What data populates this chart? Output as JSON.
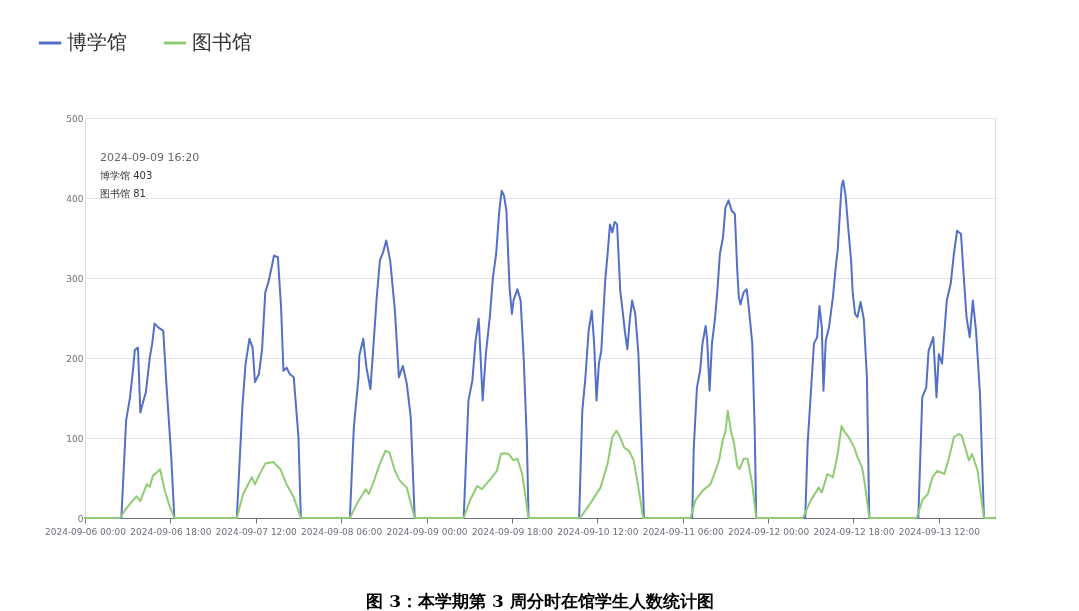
{
  "chart_data": {
    "type": "line",
    "title": "图 3：本学期第 3 周分时在馆学生人数统计图",
    "xlim": [
      "2024-09-06T00:00",
      "2024-09-13T23:50"
    ],
    "ylim": [
      0,
      500
    ],
    "yticks": [
      0,
      100,
      200,
      300,
      400,
      500
    ],
    "xticks": [
      {
        "value": "2024-09-06T00:00",
        "label": "2024-09-06 00:00"
      },
      {
        "value": "2024-09-06T18:00",
        "label": "2024-09-06 18:00"
      },
      {
        "value": "2024-09-07T12:00",
        "label": "2024-09-07 12:00"
      },
      {
        "value": "2024-09-08T06:00",
        "label": "2024-09-08 06:00"
      },
      {
        "value": "2024-09-09T00:00",
        "label": "2024-09-09 00:00"
      },
      {
        "value": "2024-09-09T18:00",
        "label": "2024-09-09 18:00"
      },
      {
        "value": "2024-09-10T12:00",
        "label": "2024-09-10 12:00"
      },
      {
        "value": "2024-09-11T06:00",
        "label": "2024-09-11 06:00"
      },
      {
        "value": "2024-09-12T00:00",
        "label": "2024-09-12 00:00"
      },
      {
        "value": "2024-09-12T18:00",
        "label": "2024-09-12 18:00"
      },
      {
        "value": "2024-09-13T12:00",
        "label": "2024-09-13 12:00"
      }
    ],
    "grid": "y",
    "legend": "top left",
    "line_style": "solid",
    "annotations": [
      "2024-09-09 16:20",
      "博学馆 403",
      "图书馆 81"
    ],
    "series": [
      {
        "name": "博学馆",
        "color": "#5470c6",
        "x": [
          "2024-09-06T00:00",
          "2024-09-06T07:40",
          "2024-09-06T08:40",
          "2024-09-06T09:30",
          "2024-09-06T10:10",
          "2024-09-06T10:30",
          "2024-09-06T11:10",
          "2024-09-06T11:40",
          "2024-09-06T12:20",
          "2024-09-06T12:50",
          "2024-09-06T13:40",
          "2024-09-06T14:10",
          "2024-09-06T14:40",
          "2024-09-06T15:30",
          "2024-09-06T16:30",
          "2024-09-06T17:10",
          "2024-09-06T18:10",
          "2024-09-06T18:50",
          "2024-09-07T08:00",
          "2024-09-07T09:10",
          "2024-09-07T09:50",
          "2024-09-07T10:40",
          "2024-09-07T11:20",
          "2024-09-07T11:50",
          "2024-09-07T12:40",
          "2024-09-07T13:20",
          "2024-09-07T14:00",
          "2024-09-07T14:40",
          "2024-09-07T15:20",
          "2024-09-07T15:50",
          "2024-09-07T16:40",
          "2024-09-07T17:20",
          "2024-09-07T17:50",
          "2024-09-07T18:30",
          "2024-09-07T19:10",
          "2024-09-07T20:00",
          "2024-09-07T21:00",
          "2024-09-07T21:30",
          "2024-09-08T07:50",
          "2024-09-08T08:40",
          "2024-09-08T09:40",
          "2024-09-08T09:50",
          "2024-09-08T10:40",
          "2024-09-08T11:20",
          "2024-09-08T12:10",
          "2024-09-08T12:50",
          "2024-09-08T13:30",
          "2024-09-08T14:10",
          "2024-09-08T14:50",
          "2024-09-08T15:30",
          "2024-09-08T16:20",
          "2024-09-08T17:20",
          "2024-09-08T18:10",
          "2024-09-08T19:00",
          "2024-09-08T19:50",
          "2024-09-08T20:40",
          "2024-09-08T21:30",
          "2024-09-09T07:50",
          "2024-09-09T08:50",
          "2024-09-09T09:40",
          "2024-09-09T10:20",
          "2024-09-09T11:00",
          "2024-09-09T11:50",
          "2024-09-09T12:30",
          "2024-09-09T13:20",
          "2024-09-09T14:00",
          "2024-09-09T14:40",
          "2024-09-09T15:20",
          "2024-09-09T15:50",
          "2024-09-09T16:20",
          "2024-09-09T16:50",
          "2024-09-09T17:30",
          "2024-09-09T18:00",
          "2024-09-09T18:20",
          "2024-09-09T19:10",
          "2024-09-09T19:50",
          "2024-09-09T20:30",
          "2024-09-09T21:10",
          "2024-09-09T21:30",
          "2024-09-10T08:10",
          "2024-09-10T08:50",
          "2024-09-10T09:30",
          "2024-09-10T10:10",
          "2024-09-10T10:50",
          "2024-09-10T11:20",
          "2024-09-10T11:50",
          "2024-09-10T12:20",
          "2024-09-10T12:50",
          "2024-09-10T13:40",
          "2024-09-10T14:10",
          "2024-09-10T14:40",
          "2024-09-10T15:10",
          "2024-09-10T15:40",
          "2024-09-10T16:10",
          "2024-09-10T16:50",
          "2024-09-10T17:20",
          "2024-09-10T17:50",
          "2024-09-10T18:20",
          "2024-09-10T18:50",
          "2024-09-10T19:20",
          "2024-09-10T20:00",
          "2024-09-10T20:40",
          "2024-09-10T21:20",
          "2024-09-10T21:50",
          "2024-09-11T08:00",
          "2024-09-11T08:20",
          "2024-09-11T09:00",
          "2024-09-11T09:40",
          "2024-09-11T10:10",
          "2024-09-11T10:50",
          "2024-09-11T11:10",
          "2024-09-11T11:40",
          "2024-09-11T12:10",
          "2024-09-11T12:50",
          "2024-09-11T13:20",
          "2024-09-11T13:50",
          "2024-09-11T14:30",
          "2024-09-11T15:00",
          "2024-09-11T15:40",
          "2024-09-11T16:20",
          "2024-09-11T17:00",
          "2024-09-11T17:30",
          "2024-09-11T17:50",
          "2024-09-11T18:10",
          "2024-09-11T18:50",
          "2024-09-11T19:30",
          "2024-09-11T20:00",
          "2024-09-11T20:40",
          "2024-09-11T21:10",
          "2024-09-11T21:30",
          "2024-09-12T07:50",
          "2024-09-12T08:20",
          "2024-09-12T09:00",
          "2024-09-12T09:40",
          "2024-09-12T10:20",
          "2024-09-12T10:50",
          "2024-09-12T11:20",
          "2024-09-12T11:40",
          "2024-09-12T12:10",
          "2024-09-12T12:50",
          "2024-09-12T13:40",
          "2024-09-12T14:20",
          "2024-09-12T14:40",
          "2024-09-12T15:10",
          "2024-09-12T15:30",
          "2024-09-12T15:50",
          "2024-09-12T16:20",
          "2024-09-12T17:00",
          "2024-09-12T17:30",
          "2024-09-12T17:50",
          "2024-09-12T18:20",
          "2024-09-12T18:50",
          "2024-09-12T19:30",
          "2024-09-12T20:10",
          "2024-09-12T20:50",
          "2024-09-12T21:20",
          "2024-09-13T07:40",
          "2024-09-13T08:30",
          "2024-09-13T09:20",
          "2024-09-13T09:50",
          "2024-09-13T10:50",
          "2024-09-13T11:30",
          "2024-09-13T12:00",
          "2024-09-13T12:40",
          "2024-09-13T13:40",
          "2024-09-13T14:30",
          "2024-09-13T15:10",
          "2024-09-13T15:50",
          "2024-09-13T16:40",
          "2024-09-13T17:10",
          "2024-09-13T17:50",
          "2024-09-13T18:30",
          "2024-09-13T19:10",
          "2024-09-13T19:50",
          "2024-09-13T20:40",
          "2024-09-13T21:30",
          "2024-09-13T23:50"
        ],
        "values": [
          0,
          0,
          122,
          151,
          188,
          210,
          213,
          132,
          147,
          157,
          201,
          218,
          243,
          238,
          234,
          167,
          78,
          0,
          0,
          138,
          192,
          224,
          213,
          170,
          180,
          211,
          282,
          295,
          313,
          328,
          326,
          263,
          184,
          188,
          180,
          176,
          101,
          0,
          0,
          113,
          176,
          203,
          224,
          188,
          161,
          218,
          276,
          322,
          332,
          347,
          322,
          259,
          176,
          190,
          168,
          126,
          0,
          0,
          147,
          172,
          222,
          249,
          147,
          205,
          251,
          301,
          330,
          384,
          409,
          403,
          384,
          288,
          255,
          272,
          286,
          272,
          197,
          93,
          0,
          0,
          134,
          176,
          234,
          259,
          218,
          147,
          193,
          209,
          297,
          330,
          367,
          357,
          370,
          367,
          284,
          259,
          232,
          211,
          247,
          272,
          255,
          205,
          93,
          0,
          0,
          88,
          163,
          184,
          218,
          240,
          222,
          159,
          218,
          251,
          286,
          330,
          351,
          388,
          397,
          384,
          380,
          309,
          276,
          267,
          282,
          286,
          259,
          218,
          113,
          0,
          0,
          93,
          155,
          218,
          226,
          265,
          238,
          159,
          222,
          238,
          276,
          318,
          334,
          384,
          415,
          422,
          403,
          355,
          322,
          282,
          255,
          251,
          270,
          249,
          176,
          0,
          0,
          151,
          163,
          209,
          226,
          151,
          205,
          193,
          272,
          293,
          330,
          359,
          355,
          309,
          251,
          226,
          272,
          234,
          155,
          0,
          0
        ]
      },
      {
        "name": "图书馆",
        "color": "#91cc75",
        "x": [
          "2024-09-06T00:00",
          "2024-09-06T07:20",
          "2024-09-06T08:50",
          "2024-09-06T10:50",
          "2024-09-06T11:40",
          "2024-09-06T13:00",
          "2024-09-06T13:40",
          "2024-09-06T14:20",
          "2024-09-06T15:10",
          "2024-09-06T15:50",
          "2024-09-06T16:50",
          "2024-09-06T17:50",
          "2024-09-06T18:50",
          "2024-09-07T08:00",
          "2024-09-07T09:20",
          "2024-09-07T11:10",
          "2024-09-07T11:50",
          "2024-09-07T12:40",
          "2024-09-07T14:00",
          "2024-09-07T15:40",
          "2024-09-07T17:10",
          "2024-09-07T18:30",
          "2024-09-07T20:00",
          "2024-09-07T21:30",
          "2024-09-08T07:50",
          "2024-09-08T09:20",
          "2024-09-08T11:10",
          "2024-09-08T11:50",
          "2024-09-08T12:50",
          "2024-09-08T14:10",
          "2024-09-08T15:20",
          "2024-09-08T16:10",
          "2024-09-08T17:20",
          "2024-09-08T18:20",
          "2024-09-08T19:50",
          "2024-09-08T21:30",
          "2024-09-09T07:50",
          "2024-09-09T09:10",
          "2024-09-09T10:40",
          "2024-09-09T11:40",
          "2024-09-09T13:30",
          "2024-09-09T14:50",
          "2024-09-09T15:40",
          "2024-09-09T16:20",
          "2024-09-09T17:20",
          "2024-09-09T18:20",
          "2024-09-09T19:10",
          "2024-09-09T20:10",
          "2024-09-09T21:30",
          "2024-09-10T08:20",
          "2024-09-10T10:30",
          "2024-09-10T12:40",
          "2024-09-10T14:10",
          "2024-09-10T15:10",
          "2024-09-10T16:00",
          "2024-09-10T16:40",
          "2024-09-10T17:40",
          "2024-09-10T18:40",
          "2024-09-10T19:40",
          "2024-09-10T20:40",
          "2024-09-10T21:40",
          "2024-09-11T07:40",
          "2024-09-11T08:40",
          "2024-09-11T10:10",
          "2024-09-11T11:50",
          "2024-09-11T12:40",
          "2024-09-11T13:40",
          "2024-09-11T14:30",
          "2024-09-11T15:00",
          "2024-09-11T15:30",
          "2024-09-11T16:10",
          "2024-09-11T16:50",
          "2024-09-11T17:30",
          "2024-09-11T18:00",
          "2024-09-11T18:50",
          "2024-09-11T19:40",
          "2024-09-11T20:40",
          "2024-09-11T21:30",
          "2024-09-12T07:20",
          "2024-09-12T09:00",
          "2024-09-12T10:40",
          "2024-09-12T11:20",
          "2024-09-12T12:30",
          "2024-09-12T13:40",
          "2024-09-12T14:40",
          "2024-09-12T15:30",
          "2024-09-12T16:10",
          "2024-09-12T17:00",
          "2024-09-12T18:10",
          "2024-09-12T18:50",
          "2024-09-12T19:50",
          "2024-09-12T20:30",
          "2024-09-12T21:20",
          "2024-09-13T07:20",
          "2024-09-13T08:30",
          "2024-09-13T09:40",
          "2024-09-13T10:40",
          "2024-09-13T11:40",
          "2024-09-13T13:10",
          "2024-09-13T14:10",
          "2024-09-13T15:10",
          "2024-09-13T16:10",
          "2024-09-13T16:50",
          "2024-09-13T18:20",
          "2024-09-13T19:00",
          "2024-09-13T20:10",
          "2024-09-13T21:30",
          "2024-09-13T23:50"
        ],
        "values": [
          0,
          0,
          13,
          27,
          21,
          42,
          39,
          53,
          57,
          61,
          34,
          15,
          0,
          0,
          30,
          51,
          42,
          53,
          68,
          70,
          61,
          42,
          26,
          0,
          0,
          18,
          36,
          30,
          45,
          68,
          84,
          82,
          59,
          47,
          38,
          0,
          0,
          22,
          40,
          36,
          49,
          59,
          80,
          81,
          80,
          72,
          74,
          55,
          0,
          0,
          18,
          38,
          68,
          101,
          109,
          103,
          88,
          84,
          72,
          38,
          0,
          0,
          22,
          34,
          42,
          55,
          72,
          99,
          107,
          134,
          109,
          93,
          65,
          61,
          74,
          74,
          42,
          0,
          0,
          22,
          38,
          32,
          55,
          51,
          80,
          115,
          107,
          101,
          88,
          76,
          63,
          38,
          0,
          0,
          22,
          30,
          51,
          59,
          55,
          76,
          101,
          105,
          103,
          72,
          80,
          59,
          0,
          0
        ]
      }
    ]
  }
}
